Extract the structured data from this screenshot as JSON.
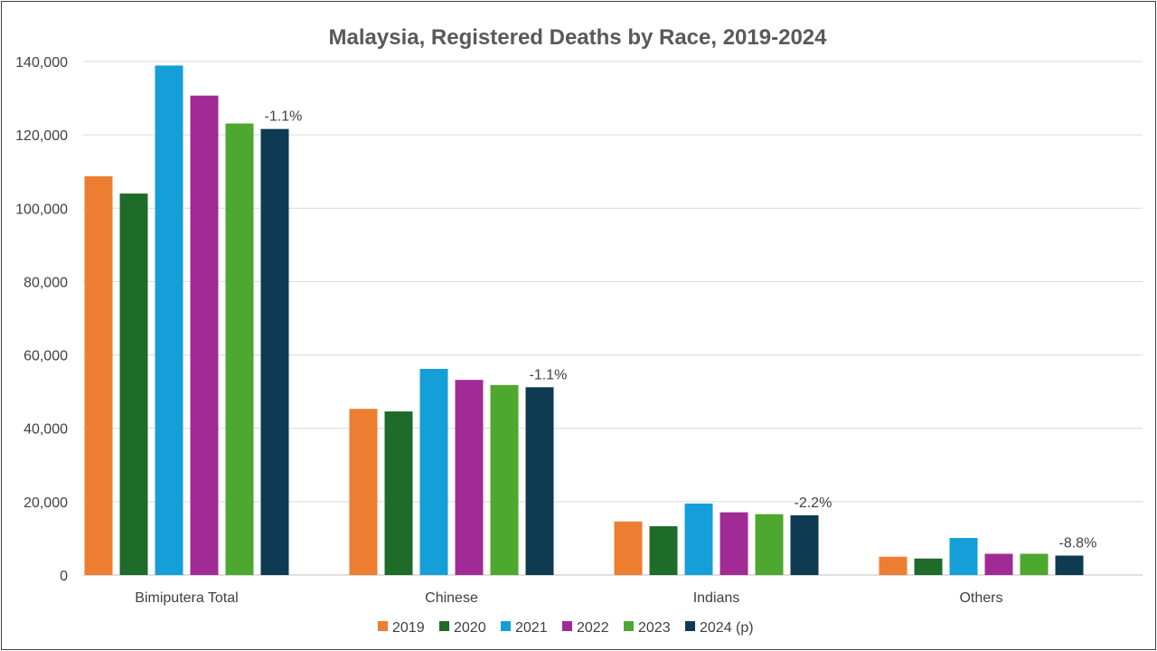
{
  "chart_data": {
    "type": "bar",
    "title": "Malaysia, Registered Deaths by Race, 2019-2024",
    "xlabel": "",
    "ylabel": "",
    "ylim": [
      0,
      140000
    ],
    "yticks": [
      0,
      20000,
      40000,
      60000,
      80000,
      100000,
      120000,
      140000
    ],
    "ytick_labels": [
      "0",
      "20,000",
      "40,000",
      "60,000",
      "80,000",
      "100,000",
      "120,000",
      "140,000"
    ],
    "grid": true,
    "legend_position": "bottom",
    "categories": [
      "Bimiputera Total",
      "Chinese",
      "Indians",
      "Others"
    ],
    "series": [
      {
        "name": "2019",
        "color": "#ED7D31",
        "values": [
          108700,
          45300,
          14600,
          5000
        ]
      },
      {
        "name": "2020",
        "color": "#1E6B2A",
        "values": [
          104000,
          44600,
          13300,
          4500
        ]
      },
      {
        "name": "2021",
        "color": "#149FD8",
        "values": [
          138900,
          56200,
          19500,
          10100
        ]
      },
      {
        "name": "2022",
        "color": "#A12B94",
        "values": [
          130700,
          53200,
          17100,
          5800
        ]
      },
      {
        "name": "2023",
        "color": "#4EA72E",
        "values": [
          123100,
          51800,
          16600,
          5800
        ]
      },
      {
        "name": "2024 (p)",
        "color": "#0E3A52",
        "values": [
          121600,
          51200,
          16300,
          5300
        ]
      }
    ],
    "annotations": [
      "-1.1%",
      "-1.1%",
      "-2.2%",
      "-8.8%"
    ]
  }
}
